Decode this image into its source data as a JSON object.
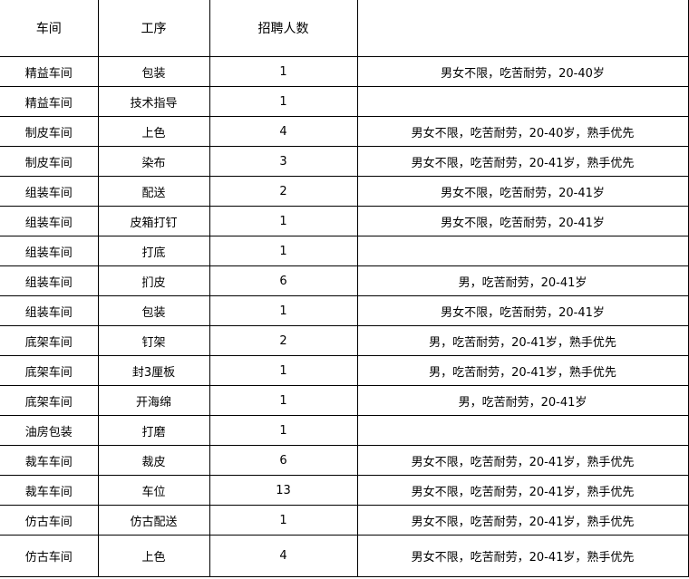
{
  "headers": [
    "车间",
    "工序",
    "招聘人数",
    ""
  ],
  "rows": [
    [
      "精益车间",
      "包装",
      "1",
      "男女不限，吃苦耐劳，20-40岁"
    ],
    [
      "精益车间",
      "技术指导",
      "1",
      ""
    ],
    [
      "制皮车间",
      "上色",
      "4",
      "男女不限，吃苦耐劳，20-40岁，熟手优先"
    ],
    [
      "制皮车间",
      "染布",
      "3",
      "男女不限，吃苦耐劳，20-41岁，熟手优先"
    ],
    [
      "组装车间",
      "配送",
      "2",
      "男女不限，吃苦耐劳，20-41岁"
    ],
    [
      "组装车间",
      "皮箱打钉",
      "1",
      "男女不限，吃苦耐劳，20-41岁"
    ],
    [
      "组装车间",
      "打底",
      "1",
      ""
    ],
    [
      "组装车间",
      "扪皮",
      "6",
      "男，吃苦耐劳，20-41岁"
    ],
    [
      "组装车间",
      "包装",
      "1",
      "男女不限，吃苦耐劳，20-41岁"
    ],
    [
      "底架车间",
      "钉架",
      "2",
      "男，吃苦耐劳，20-41岁，熟手优先"
    ],
    [
      "底架车间",
      "封3厘板",
      "1",
      "男，吃苦耐劳，20-41岁，熟手优先"
    ],
    [
      "底架车间",
      "开海绵",
      "1",
      "男，吃苦耐劳，20-41岁"
    ],
    [
      "油房包装",
      "打磨",
      "1",
      ""
    ],
    [
      "裁车车间",
      "裁皮",
      "6",
      "男女不限，吃苦耐劳，20-41岁，熟手优先"
    ],
    [
      "裁车车间",
      "车位",
      "13",
      "男女不限，吃苦耐劳，20-41岁，熟手优先"
    ],
    [
      "仿古车间",
      "仿古配送",
      "1",
      "男女不限，吃苦耐劳，20-41岁，熟手优先"
    ],
    [
      "仿古车间",
      "上色",
      "4",
      "男女不限，吃苦耐劳，20-41岁，熟手优先"
    ]
  ]
}
